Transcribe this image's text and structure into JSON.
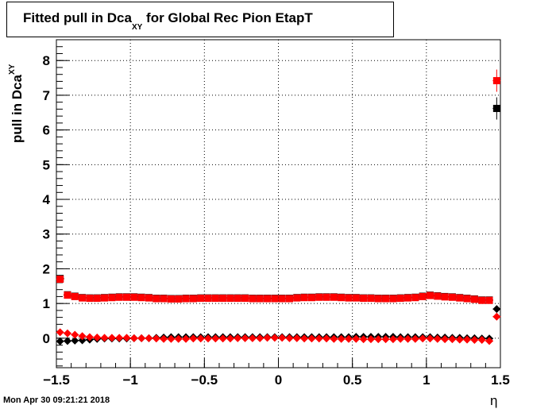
{
  "chart_data": {
    "type": "scatter",
    "title_main": "Fitted pull in Dca",
    "title_sub": "XY",
    "title_rest": "for Global Rec Pion EtapT",
    "ylabel_main": "pull in Dca",
    "ylabel_sub": "XY",
    "xlabel": "η",
    "xlim": [
      -1.5,
      1.5
    ],
    "ylim": [
      -0.85,
      8.6
    ],
    "grid": true,
    "x_ticks": [
      "−1.5",
      "−1",
      "−0.5",
      "0",
      "0.5",
      "1",
      "1.5"
    ],
    "x_tick_values": [
      -1.5,
      -1,
      -0.5,
      0,
      0.5,
      1,
      1.5
    ],
    "y_ticks": [
      "0",
      "1",
      "2",
      "3",
      "4",
      "5",
      "6",
      "7",
      "8"
    ],
    "y_tick_values": [
      0,
      1,
      2,
      3,
      4,
      5,
      6,
      7,
      8
    ],
    "x": [
      -1.475,
      -1.425,
      -1.375,
      -1.325,
      -1.275,
      -1.225,
      -1.175,
      -1.125,
      -1.075,
      -1.025,
      -0.975,
      -0.925,
      -0.875,
      -0.825,
      -0.775,
      -0.725,
      -0.675,
      -0.625,
      -0.575,
      -0.525,
      -0.475,
      -0.425,
      -0.375,
      -0.325,
      -0.275,
      -0.225,
      -0.175,
      -0.125,
      -0.075,
      -0.025,
      0.025,
      0.075,
      0.125,
      0.175,
      0.225,
      0.275,
      0.325,
      0.375,
      0.425,
      0.475,
      0.525,
      0.575,
      0.625,
      0.675,
      0.725,
      0.775,
      0.825,
      0.875,
      0.925,
      0.975,
      1.025,
      1.075,
      1.125,
      1.175,
      1.225,
      1.275,
      1.325,
      1.375,
      1.425,
      1.475
    ],
    "series": [
      {
        "marker": "square",
        "color": "#000000",
        "values": [
          1.72,
          1.25,
          1.21,
          1.17,
          1.16,
          1.16,
          1.17,
          1.18,
          1.19,
          1.19,
          1.19,
          1.18,
          1.17,
          1.15,
          1.15,
          1.14,
          1.14,
          1.15,
          1.15,
          1.16,
          1.16,
          1.16,
          1.16,
          1.16,
          1.16,
          1.16,
          1.15,
          1.15,
          1.15,
          1.15,
          1.15,
          1.15,
          1.17,
          1.18,
          1.18,
          1.19,
          1.19,
          1.19,
          1.18,
          1.17,
          1.17,
          1.16,
          1.16,
          1.15,
          1.15,
          1.15,
          1.16,
          1.17,
          1.18,
          1.21,
          1.24,
          1.22,
          1.2,
          1.19,
          1.17,
          1.15,
          1.13,
          1.1,
          1.1,
          6.62
        ]
      },
      {
        "marker": "square",
        "color": "#ff0000",
        "values": [
          1.7,
          1.24,
          1.2,
          1.16,
          1.15,
          1.15,
          1.16,
          1.17,
          1.18,
          1.18,
          1.18,
          1.17,
          1.16,
          1.14,
          1.14,
          1.13,
          1.13,
          1.14,
          1.14,
          1.15,
          1.15,
          1.15,
          1.15,
          1.15,
          1.15,
          1.15,
          1.14,
          1.14,
          1.14,
          1.14,
          1.14,
          1.14,
          1.16,
          1.17,
          1.17,
          1.18,
          1.18,
          1.18,
          1.17,
          1.16,
          1.16,
          1.15,
          1.15,
          1.14,
          1.14,
          1.14,
          1.15,
          1.16,
          1.17,
          1.2,
          1.23,
          1.21,
          1.19,
          1.18,
          1.16,
          1.14,
          1.12,
          1.09,
          1.09,
          7.42
        ]
      },
      {
        "marker": "diamond",
        "color": "#000000",
        "values": [
          -0.09,
          -0.08,
          -0.07,
          -0.06,
          -0.04,
          -0.02,
          -0.01,
          -0.01,
          -0.01,
          -0.01,
          0.0,
          0.0,
          0.0,
          0.01,
          0.02,
          0.03,
          0.03,
          0.03,
          0.03,
          0.03,
          0.03,
          0.03,
          0.03,
          0.03,
          0.03,
          0.03,
          0.03,
          0.03,
          0.03,
          0.03,
          0.03,
          0.03,
          0.03,
          0.03,
          0.03,
          0.03,
          0.03,
          0.03,
          0.03,
          0.03,
          0.04,
          0.04,
          0.04,
          0.04,
          0.04,
          0.04,
          0.03,
          0.03,
          0.03,
          0.03,
          0.03,
          0.02,
          0.02,
          0.01,
          0.01,
          0.0,
          0.0,
          -0.01,
          -0.01,
          0.84
        ]
      },
      {
        "marker": "diamond",
        "color": "#ff0000",
        "values": [
          0.17,
          0.14,
          0.1,
          0.06,
          0.03,
          0.02,
          0.01,
          0.01,
          0.01,
          0.01,
          0.0,
          0.0,
          0.0,
          -0.01,
          -0.02,
          -0.02,
          -0.02,
          -0.02,
          -0.01,
          -0.01,
          -0.01,
          -0.01,
          -0.01,
          -0.01,
          0.0,
          0.0,
          0.0,
          0.0,
          0.01,
          0.01,
          0.01,
          0.0,
          0.0,
          -0.01,
          -0.01,
          -0.01,
          -0.01,
          -0.02,
          -0.02,
          -0.02,
          -0.02,
          -0.03,
          -0.03,
          -0.03,
          -0.03,
          -0.03,
          -0.02,
          -0.02,
          -0.02,
          -0.01,
          -0.01,
          -0.02,
          -0.03,
          -0.03,
          -0.04,
          -0.04,
          -0.05,
          -0.05,
          -0.08,
          0.62
        ]
      }
    ]
  },
  "timestamp": "Mon Apr 30 09:21:21 2018"
}
